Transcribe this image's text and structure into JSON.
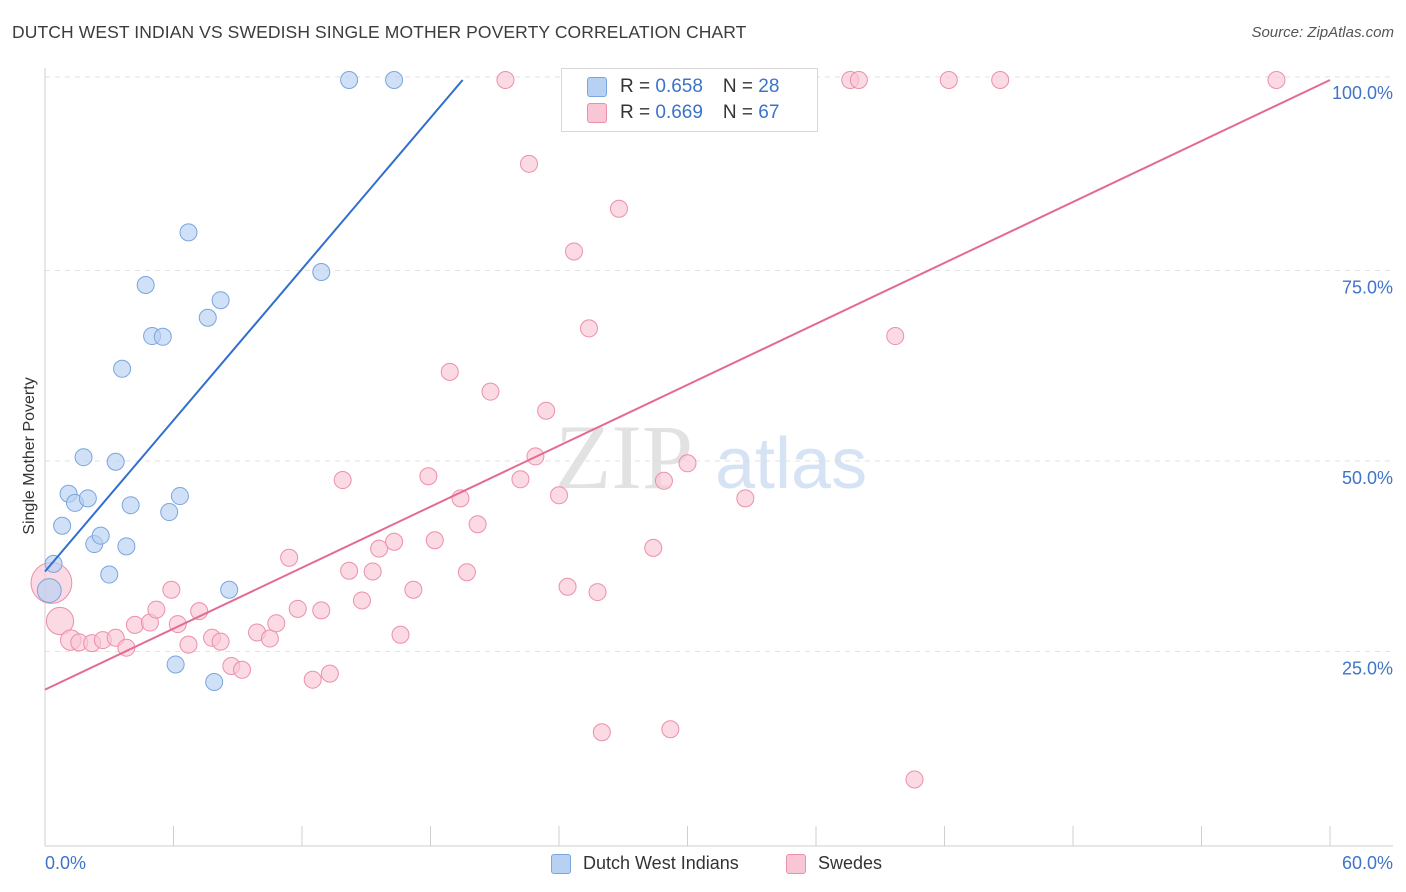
{
  "title": "DUTCH WEST INDIAN VS SWEDISH SINGLE MOTHER POVERTY CORRELATION CHART",
  "source": "Source: ZipAtlas.com",
  "watermark": {
    "zip": "ZIP",
    "atlas": "atlas"
  },
  "legend_stats": [
    {
      "r_label": "R = ",
      "r_value": "0.658",
      "n_label": "N = ",
      "n_value": "28",
      "color": "#aac8ee"
    },
    {
      "r_label": "R = ",
      "r_value": "0.669",
      "n_label": "N = ",
      "n_value": "67",
      "color": "#f7b9cb"
    }
  ],
  "colors": {
    "blue_fill": "#b7d1f3",
    "blue_stroke": "#7aa5dd",
    "blue_line": "#2f6fd0",
    "pink_fill": "#f9c6d5",
    "pink_stroke": "#ec8fab",
    "pink_line": "#e36b93",
    "axis_text": "#3f74c9",
    "grid": "#e2e2e2"
  },
  "chart_data": {
    "type": "scatter",
    "xlabel": "",
    "ylabel": "Single Mother Poverty",
    "xlim": [
      0,
      60
    ],
    "ylim": [
      0,
      100
    ],
    "x_ticks": [
      "0.0%",
      "60.0%"
    ],
    "y_ticks": [
      {
        "value": 25,
        "label": "25.0%"
      },
      {
        "value": 50,
        "label": "50.0%"
      },
      {
        "value": 75,
        "label": "75.0%"
      },
      {
        "value": 100,
        "label": "100.0%"
      }
    ],
    "grid": "horizontal dashed",
    "series": [
      {
        "name": "Dutch West Indians",
        "trend": [
          [
            0.0,
            35.5
          ],
          [
            19.5,
            100.0
          ]
        ],
        "points": [
          [
            0.2,
            33,
            1.4
          ],
          [
            0.4,
            36.5,
            1
          ],
          [
            0.8,
            41.5,
            1
          ],
          [
            1.1,
            45.7,
            1
          ],
          [
            1.4,
            44.5,
            1
          ],
          [
            1.8,
            50.5,
            1
          ],
          [
            2.0,
            45.1,
            1
          ],
          [
            2.3,
            39.1,
            1
          ],
          [
            2.6,
            40.2,
            1
          ],
          [
            3.0,
            35.1,
            1
          ],
          [
            3.3,
            49.9,
            1
          ],
          [
            3.6,
            62.1,
            1
          ],
          [
            3.8,
            38.8,
            1
          ],
          [
            4.0,
            44.2,
            1
          ],
          [
            4.7,
            73.1,
            1
          ],
          [
            5.0,
            66.4,
            1
          ],
          [
            5.5,
            66.3,
            1
          ],
          [
            5.8,
            43.3,
            1
          ],
          [
            6.1,
            23.3,
            1
          ],
          [
            6.3,
            45.4,
            1
          ],
          [
            6.7,
            80.0,
            1
          ],
          [
            7.6,
            68.8,
            1
          ],
          [
            7.9,
            21.0,
            1
          ],
          [
            8.2,
            71.1,
            1
          ],
          [
            8.6,
            33.1,
            1
          ],
          [
            12.9,
            74.8,
            1
          ],
          [
            14.2,
            100.0,
            1
          ],
          [
            16.3,
            100.0,
            1
          ]
        ]
      },
      {
        "name": "Swedes",
        "trend": [
          [
            0.0,
            20.0
          ],
          [
            60.0,
            100.0
          ]
        ],
        "points": [
          [
            0.3,
            34.0,
            2.4
          ],
          [
            0.7,
            29.0,
            1.6
          ],
          [
            1.2,
            26.5,
            1.2
          ],
          [
            1.6,
            26.2,
            1
          ],
          [
            2.2,
            26.1,
            1
          ],
          [
            2.7,
            26.5,
            1
          ],
          [
            3.3,
            26.8,
            1
          ],
          [
            3.8,
            25.5,
            1
          ],
          [
            4.2,
            28.5,
            1
          ],
          [
            4.9,
            28.8,
            1
          ],
          [
            5.2,
            30.5,
            1
          ],
          [
            5.9,
            33.1,
            1
          ],
          [
            6.2,
            28.6,
            1
          ],
          [
            6.7,
            25.9,
            1
          ],
          [
            7.2,
            30.3,
            1
          ],
          [
            7.8,
            26.8,
            1
          ],
          [
            8.2,
            26.3,
            1
          ],
          [
            8.7,
            23.1,
            1
          ],
          [
            9.2,
            22.6,
            1
          ],
          [
            9.9,
            27.5,
            1
          ],
          [
            10.5,
            26.7,
            1
          ],
          [
            10.8,
            28.7,
            1
          ],
          [
            11.4,
            37.3,
            1
          ],
          [
            11.8,
            30.6,
            1
          ],
          [
            12.5,
            21.3,
            1
          ],
          [
            12.9,
            30.4,
            1
          ],
          [
            13.3,
            22.1,
            1
          ],
          [
            13.9,
            47.5,
            1
          ],
          [
            14.2,
            35.6,
            1
          ],
          [
            14.8,
            31.7,
            1
          ],
          [
            15.3,
            35.5,
            1
          ],
          [
            15.6,
            38.5,
            1
          ],
          [
            16.3,
            39.4,
            1
          ],
          [
            16.6,
            27.2,
            1
          ],
          [
            17.2,
            33.1,
            1
          ],
          [
            17.9,
            48.0,
            1
          ],
          [
            18.2,
            39.6,
            1
          ],
          [
            18.9,
            61.7,
            1
          ],
          [
            19.4,
            45.1,
            1
          ],
          [
            19.7,
            35.4,
            1
          ],
          [
            20.2,
            41.7,
            1
          ],
          [
            20.8,
            59.1,
            1
          ],
          [
            21.5,
            100.0,
            1
          ],
          [
            22.2,
            47.6,
            1
          ],
          [
            22.6,
            89.0,
            1
          ],
          [
            22.9,
            50.6,
            1
          ],
          [
            23.4,
            56.6,
            1
          ],
          [
            24.0,
            45.5,
            1
          ],
          [
            24.4,
            33.5,
            1
          ],
          [
            24.7,
            77.5,
            1
          ],
          [
            25.4,
            67.4,
            1
          ],
          [
            25.8,
            32.8,
            1
          ],
          [
            26.0,
            14.4,
            1
          ],
          [
            26.8,
            83.1,
            1
          ],
          [
            28.4,
            38.6,
            1
          ],
          [
            28.9,
            47.4,
            1
          ],
          [
            29.2,
            14.8,
            1
          ],
          [
            30.0,
            49.7,
            1
          ],
          [
            31.2,
            100.0,
            1
          ],
          [
            32.7,
            45.1,
            1
          ],
          [
            37.6,
            100.0,
            1
          ],
          [
            38.0,
            100.0,
            1
          ],
          [
            39.7,
            66.4,
            1
          ],
          [
            40.6,
            8.2,
            1
          ],
          [
            42.2,
            100.0,
            1
          ],
          [
            44.6,
            100.0,
            1
          ],
          [
            57.5,
            100.0,
            1
          ]
        ]
      }
    ]
  }
}
